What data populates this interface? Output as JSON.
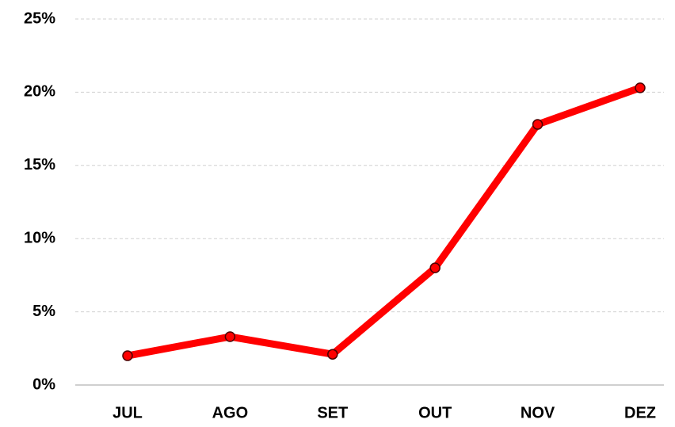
{
  "chart_data": {
    "type": "line",
    "categories": [
      "JUL",
      "AGO",
      "SET",
      "OUT",
      "NOV",
      "DEZ"
    ],
    "series": [
      {
        "color": "#ff0000",
        "values": [
          2.0,
          3.3,
          2.1,
          8.0,
          17.8,
          20.3
        ]
      }
    ],
    "ylim": [
      0,
      25
    ],
    "yticks": [
      {
        "value": 0,
        "label": "0%"
      },
      {
        "value": 5,
        "label": "5%"
      },
      {
        "value": 10,
        "label": "10%"
      },
      {
        "value": 15,
        "label": "15%"
      },
      {
        "value": 20,
        "label": "20%"
      },
      {
        "value": 25,
        "label": "25%"
      }
    ],
    "grid": true
  }
}
